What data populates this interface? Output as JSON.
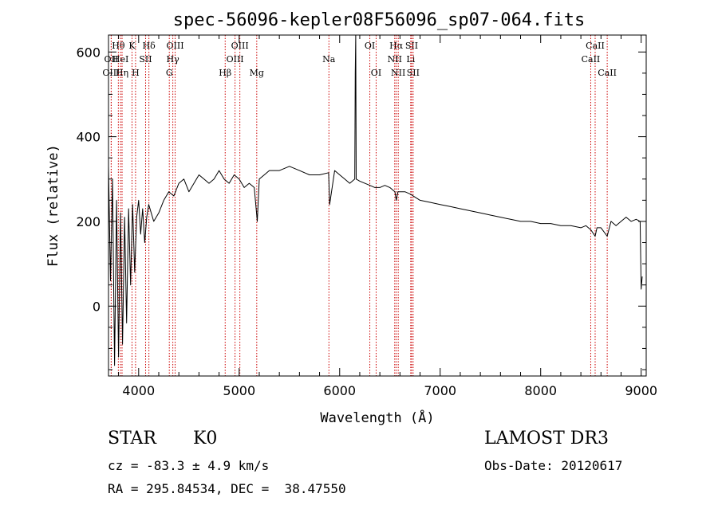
{
  "chart_data": {
    "type": "line",
    "title": "spec-56096-kepler08F56096_sp07-064.fits",
    "xlabel": "Wavelength (Å)",
    "ylabel": "Flux (relative)",
    "xlim": [
      3700,
      9050
    ],
    "ylim": [
      -165,
      640
    ],
    "x_ticks": [
      4000,
      5000,
      6000,
      7000,
      8000,
      9000
    ],
    "y_ticks": [
      0,
      200,
      400,
      600
    ],
    "x_tick_labels": [
      "4000",
      "5000",
      "6000",
      "7000",
      "8000",
      "9000"
    ],
    "y_tick_labels": [
      "0",
      "200",
      "400",
      "600"
    ],
    "line_color": "#000000",
    "marker_color": "#cc0000",
    "series": [
      {
        "name": "flux",
        "x": [
          3700,
          3720,
          3740,
          3760,
          3780,
          3800,
          3820,
          3840,
          3860,
          3880,
          3900,
          3920,
          3940,
          3960,
          3980,
          4000,
          4020,
          4040,
          4060,
          4080,
          4100,
          4150,
          4200,
          4250,
          4300,
          4350,
          4400,
          4450,
          4500,
          4550,
          4600,
          4650,
          4700,
          4750,
          4800,
          4850,
          4900,
          4950,
          5000,
          5050,
          5100,
          5150,
          5180,
          5200,
          5250,
          5300,
          5400,
          5500,
          5600,
          5700,
          5800,
          5890,
          5900,
          5950,
          6000,
          6050,
          6100,
          6150,
          6155,
          6160,
          6165,
          6200,
          6250,
          6300,
          6350,
          6400,
          6450,
          6500,
          6550,
          6563,
          6580,
          6650,
          6700,
          6800,
          6900,
          7000,
          7100,
          7200,
          7300,
          7400,
          7500,
          7600,
          7700,
          7800,
          7900,
          8000,
          8100,
          8200,
          8300,
          8400,
          8450,
          8500,
          8542,
          8560,
          8600,
          8662,
          8700,
          8750,
          8800,
          8850,
          8900,
          8950,
          8990,
          9000,
          9010
        ],
        "y": [
          330,
          60,
          300,
          -140,
          250,
          -120,
          220,
          -90,
          210,
          -40,
          230,
          50,
          240,
          80,
          210,
          250,
          170,
          230,
          150,
          210,
          240,
          200,
          220,
          250,
          270,
          260,
          290,
          300,
          270,
          290,
          310,
          300,
          290,
          300,
          320,
          300,
          290,
          310,
          300,
          280,
          290,
          280,
          200,
          300,
          310,
          320,
          320,
          330,
          320,
          310,
          310,
          315,
          240,
          320,
          310,
          300,
          290,
          300,
          550,
          640,
          300,
          295,
          290,
          285,
          280,
          280,
          285,
          280,
          270,
          250,
          270,
          270,
          265,
          250,
          245,
          240,
          235,
          230,
          225,
          220,
          215,
          210,
          205,
          200,
          200,
          195,
          195,
          190,
          190,
          185,
          190,
          180,
          165,
          185,
          185,
          165,
          200,
          190,
          200,
          210,
          200,
          205,
          200,
          40,
          70
        ]
      }
    ],
    "spectral_lines": [
      {
        "label": "OII",
        "wave": 3727,
        "row": 1
      },
      {
        "label": "OIII",
        "wave": 3727,
        "row": 2
      },
      {
        "label": "Hθ",
        "wave": 3798,
        "row": 0
      },
      {
        "label": "HeI",
        "wave": 3820,
        "row": 1
      },
      {
        "label": "Hη",
        "wave": 3835,
        "row": 2
      },
      {
        "label": "K",
        "wave": 3934,
        "row": 0
      },
      {
        "label": "SII",
        "wave": 4069,
        "row": 1
      },
      {
        "label": "H",
        "wave": 3969,
        "row": 2
      },
      {
        "label": "Hδ",
        "wave": 4102,
        "row": 0
      },
      {
        "label": "OIII",
        "wave": 4363,
        "row": 0
      },
      {
        "label": "Hγ",
        "wave": 4340,
        "row": 1
      },
      {
        "label": "G",
        "wave": 4305,
        "row": 2
      },
      {
        "label": "OIII",
        "wave": 5007,
        "row": 0
      },
      {
        "label": "OIII",
        "wave": 4959,
        "row": 1
      },
      {
        "label": "Hβ",
        "wave": 4861,
        "row": 2
      },
      {
        "label": "Mg",
        "wave": 5175,
        "row": 2
      },
      {
        "label": "Na",
        "wave": 5893,
        "row": 1
      },
      {
        "label": "OI",
        "wave": 6300,
        "row": 0
      },
      {
        "label": "OI",
        "wave": 6363,
        "row": 2
      },
      {
        "label": "Hα",
        "wave": 6563,
        "row": 0
      },
      {
        "label": "NII",
        "wave": 6548,
        "row": 1
      },
      {
        "label": "NII",
        "wave": 6583,
        "row": 2
      },
      {
        "label": "SII",
        "wave": 6716,
        "row": 0
      },
      {
        "label": "Li",
        "wave": 6707,
        "row": 1
      },
      {
        "label": "SII",
        "wave": 6731,
        "row": 2
      },
      {
        "label": "CaII",
        "wave": 8542,
        "row": 0
      },
      {
        "label": "CaII",
        "wave": 8498,
        "row": 1
      },
      {
        "label": "CaII",
        "wave": 8662,
        "row": 2
      }
    ]
  },
  "info": {
    "object_class": "STAR",
    "subclass": "K0",
    "survey": "LAMOST DR3",
    "redshift": "cz = -83.3 ± 4.9 km/s",
    "obs_date": "Obs-Date: 20120617",
    "coords": "RA = 295.84534, DEC =  38.47550"
  }
}
